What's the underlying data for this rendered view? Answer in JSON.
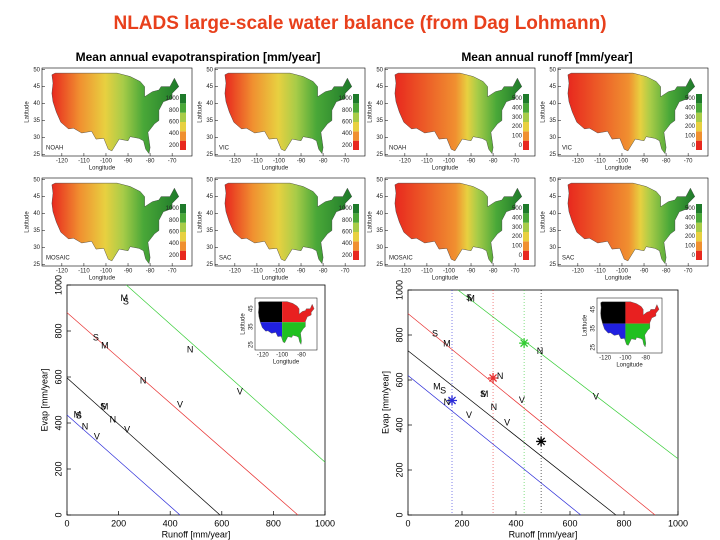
{
  "title": "NLADS large-scale water balance (from Dag Lohmann)",
  "maps": {
    "lat_label": "Latitude",
    "lon_label": "Longitude",
    "lat_ticks": [
      25,
      30,
      35,
      40,
      45,
      50
    ],
    "lon_ticks": [
      -120,
      -110,
      -100,
      -90,
      -80,
      -70
    ],
    "groups": [
      {
        "title": "Mean annual evapotranspiration [mm/year]",
        "colorbar_ticks": [
          200,
          400,
          600,
          800,
          1000
        ],
        "colorbar_colors": [
          "#e8281e",
          "#f09030",
          "#e8d040",
          "#a8cc48",
          "#4aa838",
          "#1e7a2a"
        ],
        "panels": [
          "NOAH",
          "VIC",
          "MOSAIC",
          "SAC"
        ]
      },
      {
        "title": "Mean annual runoff [mm/year]",
        "colorbar_ticks": [
          0,
          100,
          200,
          300,
          400,
          500
        ],
        "colorbar_colors": [
          "#e8281e",
          "#f09030",
          "#e8d040",
          "#a8cc48",
          "#4aa838",
          "#1e7a2a"
        ],
        "panels": [
          "NOAH",
          "VIC",
          "MOSAIC",
          "SAC"
        ]
      }
    ]
  },
  "chart_data": [
    {
      "type": "scatter",
      "xlabel": "Runoff [mm/year]",
      "ylabel": "Evap [mm/year]",
      "xlim": [
        0,
        1000
      ],
      "ylim": [
        0,
        1000
      ],
      "xticks": [
        0,
        200,
        400,
        600,
        800,
        1000
      ],
      "yticks": [
        0,
        200,
        400,
        600,
        800,
        1000
      ],
      "lines": [
        {
          "color": "#33cc33",
          "x": [
            230,
            1000
          ],
          "values": [
            1000,
            230
          ]
        },
        {
          "color": "#e83030",
          "x": [
            0,
            895
          ],
          "values": [
            880,
            0
          ]
        },
        {
          "color": "#000000",
          "x": [
            0,
            593
          ],
          "values": [
            596,
            0
          ]
        },
        {
          "color": "#2a2ad8",
          "x": [
            0,
            438
          ],
          "values": [
            435,
            0
          ]
        }
      ],
      "series": [
        {
          "color": "#33cc33",
          "marker_labels": [
            "M",
            "S",
            "N",
            "V"
          ],
          "x": [
            222,
            228,
            477,
            670
          ],
          "values": [
            940,
            925,
            717,
            535
          ]
        },
        {
          "color": "#e83030",
          "marker_labels": [
            "S",
            "M",
            "N",
            "V"
          ],
          "x": [
            112,
            147,
            295,
            438
          ],
          "values": [
            770,
            735,
            583,
            478
          ]
        },
        {
          "color": "#000000",
          "marker_labels": [
            "S",
            "M",
            "N",
            "V"
          ],
          "x": [
            140,
            146,
            178,
            233
          ],
          "values": [
            470,
            470,
            413,
            370
          ]
        },
        {
          "color": "#2a2ad8",
          "marker_labels": [
            "M",
            "S",
            "N",
            "V"
          ],
          "x": [
            40,
            46,
            70,
            116
          ],
          "values": [
            435,
            430,
            383,
            339
          ]
        }
      ],
      "inset": {
        "lat_label": "Latitude",
        "lon_label": "Longitude",
        "lat_ticks": [
          25,
          35,
          45
        ],
        "lon_ticks": [
          -120,
          -100,
          -80
        ],
        "region_colors": [
          "#000000",
          "#e82020",
          "#2020e0",
          "#20c020"
        ]
      }
    },
    {
      "type": "scatter",
      "xlabel": "Runoff [mm/year]",
      "ylabel": "Evap [mm/year]",
      "xlim": [
        0,
        1000
      ],
      "ylim": [
        0,
        1000
      ],
      "xticks": [
        0,
        200,
        400,
        600,
        800,
        1000
      ],
      "yticks": [
        0,
        200,
        400,
        600,
        800,
        1000
      ],
      "lines": [
        {
          "color": "#33cc33",
          "x": [
            185,
            1000
          ],
          "values": [
            1000,
            250
          ]
        },
        {
          "color": "#e83030",
          "x": [
            0,
            915
          ],
          "values": [
            895,
            0
          ]
        },
        {
          "color": "#000000",
          "x": [
            0,
            770
          ],
          "values": [
            730,
            0
          ]
        },
        {
          "color": "#2a2ad8",
          "x": [
            0,
            640
          ],
          "values": [
            620,
            0
          ]
        }
      ],
      "series": [
        {
          "color": "#33cc33",
          "marker_labels": [
            "S",
            "M",
            "N",
            "V"
          ],
          "x": [
            226,
            234,
            489,
            696
          ],
          "values": [
            964,
            960,
            727,
            523
          ]
        },
        {
          "color": "#e83030",
          "marker_labels": [
            "S",
            "M",
            "N",
            "V"
          ],
          "x": [
            100,
            144,
            341,
            422
          ],
          "values": [
            805,
            759,
            614,
            509
          ]
        },
        {
          "color": "#000000",
          "marker_labels": [
            "S",
            "M",
            "N",
            "V"
          ],
          "x": [
            278,
            284,
            318,
            367
          ],
          "values": [
            536,
            536,
            477,
            409
          ]
        },
        {
          "color": "#2a2ad8",
          "marker_labels": [
            "M",
            "S",
            "N",
            "V"
          ],
          "x": [
            107,
            130,
            144,
            226
          ],
          "values": [
            568,
            550,
            500,
            441
          ]
        }
      ],
      "observed": [
        {
          "color": "#2a2ad8",
          "x": 163,
          "value": 509
        },
        {
          "color": "#e83030",
          "x": 315,
          "value": 609
        },
        {
          "color": "#33cc33",
          "x": 430,
          "value": 764
        },
        {
          "color": "#000000",
          "x": 493,
          "value": 327
        }
      ],
      "inset": {
        "lat_label": "Latitude",
        "lon_label": "Longitude",
        "lat_ticks": [
          25,
          35,
          45
        ],
        "lon_ticks": [
          -120,
          -100,
          -80
        ],
        "region_colors": [
          "#000000",
          "#e82020",
          "#2020e0",
          "#20c020"
        ]
      }
    }
  ]
}
